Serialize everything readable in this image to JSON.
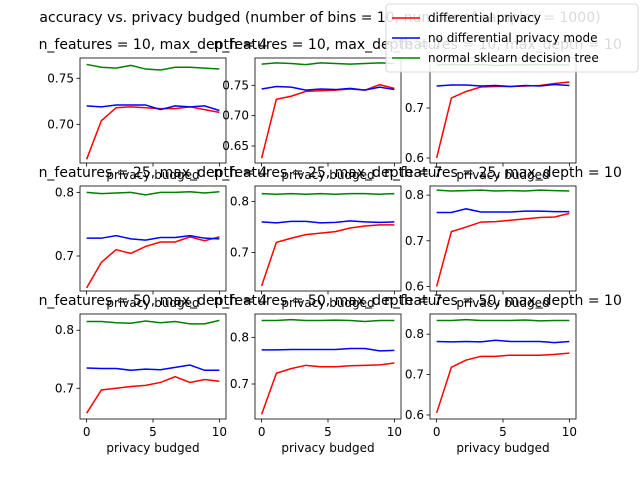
{
  "figure": {
    "suptitle": "accuracy vs. privacy budged (number of bins = 10, number of samples = 1000)"
  },
  "legend": {
    "entries": [
      {
        "name": "differential privacy",
        "color": "#ff0000"
      },
      {
        "name": "no differential privacy mode",
        "color": "#0000ff"
      },
      {
        "name": "normal sklearn decision tree",
        "color": "#008000"
      }
    ]
  },
  "chart_data": [
    {
      "type": "line",
      "title": "n_features = 10, max_depth = 4",
      "xlabel": "privacy budged",
      "ylabel": "",
      "xlim": [
        -0.5,
        10.5
      ],
      "ylim": [
        0.658,
        0.772
      ],
      "yticks": [
        {
          "v": 0.7,
          "label": "0.70"
        },
        {
          "v": 0.75,
          "label": "0.75"
        }
      ],
      "x": [
        0,
        1.11,
        2.22,
        3.33,
        4.44,
        5.56,
        6.67,
        7.78,
        8.89,
        10
      ],
      "series": [
        {
          "name": "differential privacy",
          "color": "#ff0000",
          "values": [
            0.662,
            0.704,
            0.718,
            0.719,
            0.718,
            0.717,
            0.717,
            0.719,
            0.716,
            0.713
          ]
        },
        {
          "name": "no differential privacy mode",
          "color": "#0000ff",
          "values": [
            0.72,
            0.719,
            0.721,
            0.721,
            0.721,
            0.716,
            0.72,
            0.719,
            0.72,
            0.715
          ]
        },
        {
          "name": "normal sklearn decision tree",
          "color": "#008000",
          "values": [
            0.765,
            0.762,
            0.761,
            0.764,
            0.76,
            0.759,
            0.762,
            0.762,
            0.761,
            0.76
          ]
        }
      ]
    },
    {
      "type": "line",
      "title": "n_features = 10, max_depth = 7",
      "xlabel": "privacy budged",
      "ylabel": "",
      "xlim": [
        -0.5,
        10.5
      ],
      "ylim": [
        0.622,
        0.795
      ],
      "yticks": [
        {
          "v": 0.65,
          "label": "0.65"
        },
        {
          "v": 0.7,
          "label": "0.70"
        },
        {
          "v": 0.75,
          "label": "0.75"
        }
      ],
      "x": [
        0,
        1.11,
        2.22,
        3.33,
        4.44,
        5.56,
        6.67,
        7.78,
        8.89,
        10
      ],
      "series": [
        {
          "name": "differential privacy",
          "color": "#ff0000",
          "values": [
            0.63,
            0.727,
            0.732,
            0.74,
            0.741,
            0.742,
            0.744,
            0.742,
            0.751,
            0.745
          ]
        },
        {
          "name": "no differential privacy mode",
          "color": "#0000ff",
          "values": [
            0.744,
            0.748,
            0.747,
            0.742,
            0.744,
            0.743,
            0.745,
            0.742,
            0.747,
            0.743
          ]
        },
        {
          "name": "normal sklearn decision tree",
          "color": "#008000",
          "values": [
            0.785,
            0.787,
            0.786,
            0.784,
            0.787,
            0.786,
            0.785,
            0.786,
            0.787,
            0.786
          ]
        }
      ]
    },
    {
      "type": "line",
      "title": "n_features = 10, max_depth = 10",
      "xlabel": "privacy budged",
      "ylabel": "",
      "xlim": [
        -0.5,
        10.5
      ],
      "ylim": [
        0.59,
        0.8
      ],
      "yticks": [
        {
          "v": 0.6,
          "label": "0.6"
        },
        {
          "v": 0.7,
          "label": "0.7"
        }
      ],
      "x": [
        0,
        1.11,
        2.22,
        3.33,
        4.44,
        5.56,
        6.67,
        7.78,
        8.89,
        10
      ],
      "series": [
        {
          "name": "differential privacy",
          "color": "#ff0000",
          "values": [
            0.6,
            0.72,
            0.733,
            0.742,
            0.743,
            0.743,
            0.744,
            0.745,
            0.749,
            0.752
          ]
        },
        {
          "name": "no differential privacy mode",
          "color": "#0000ff",
          "values": [
            0.744,
            0.746,
            0.746,
            0.744,
            0.745,
            0.743,
            0.745,
            0.744,
            0.747,
            0.745
          ]
        },
        {
          "name": "normal sklearn decision tree",
          "color": "#008000",
          "values": [
            0.786,
            0.787,
            0.786,
            0.787,
            0.785,
            0.786,
            0.786,
            0.787,
            0.786,
            0.786
          ]
        }
      ]
    },
    {
      "type": "line",
      "title": "n_features = 25, max_depth = 4",
      "xlabel": "privacy budged",
      "ylabel": "",
      "xlim": [
        -0.5,
        10.5
      ],
      "ylim": [
        0.645,
        0.81
      ],
      "yticks": [
        {
          "v": 0.7,
          "label": "0.7"
        },
        {
          "v": 0.8,
          "label": "0.8"
        }
      ],
      "x": [
        0,
        1.11,
        2.22,
        3.33,
        4.44,
        5.56,
        6.67,
        7.78,
        8.89,
        10
      ],
      "series": [
        {
          "name": "differential privacy",
          "color": "#ff0000",
          "values": [
            0.65,
            0.69,
            0.71,
            0.704,
            0.715,
            0.722,
            0.722,
            0.73,
            0.724,
            0.73
          ]
        },
        {
          "name": "no differential privacy mode",
          "color": "#0000ff",
          "values": [
            0.728,
            0.728,
            0.732,
            0.727,
            0.725,
            0.729,
            0.729,
            0.732,
            0.728,
            0.727
          ]
        },
        {
          "name": "normal sklearn decision tree",
          "color": "#008000",
          "values": [
            0.8,
            0.798,
            0.799,
            0.8,
            0.796,
            0.8,
            0.8,
            0.801,
            0.799,
            0.801
          ]
        }
      ]
    },
    {
      "type": "line",
      "title": "n_features = 25, max_depth = 7",
      "xlabel": "privacy budged",
      "ylabel": "",
      "xlim": [
        -0.5,
        10.5
      ],
      "ylim": [
        0.625,
        0.83
      ],
      "yticks": [
        {
          "v": 0.7,
          "label": "0.7"
        },
        {
          "v": 0.8,
          "label": "0.8"
        }
      ],
      "x": [
        0,
        1.11,
        2.22,
        3.33,
        4.44,
        5.56,
        6.67,
        7.78,
        8.89,
        10
      ],
      "series": [
        {
          "name": "differential privacy",
          "color": "#ff0000",
          "values": [
            0.635,
            0.72,
            0.728,
            0.735,
            0.738,
            0.741,
            0.748,
            0.752,
            0.754,
            0.754
          ]
        },
        {
          "name": "no differential privacy mode",
          "color": "#0000ff",
          "values": [
            0.76,
            0.758,
            0.761,
            0.761,
            0.758,
            0.759,
            0.762,
            0.76,
            0.759,
            0.76
          ]
        },
        {
          "name": "normal sklearn decision tree",
          "color": "#008000",
          "values": [
            0.815,
            0.814,
            0.815,
            0.814,
            0.815,
            0.814,
            0.815,
            0.815,
            0.814,
            0.815
          ]
        }
      ]
    },
    {
      "type": "line",
      "title": "n_features = 25, max_depth = 10",
      "xlabel": "privacy budged",
      "ylabel": "",
      "xlim": [
        -0.5,
        10.5
      ],
      "ylim": [
        0.59,
        0.82
      ],
      "yticks": [
        {
          "v": 0.6,
          "label": "0.6"
        },
        {
          "v": 0.7,
          "label": "0.7"
        },
        {
          "v": 0.8,
          "label": "0.8"
        }
      ],
      "x": [
        0,
        1.11,
        2.22,
        3.33,
        4.44,
        5.56,
        6.67,
        7.78,
        8.89,
        10
      ],
      "series": [
        {
          "name": "differential privacy",
          "color": "#ff0000",
          "values": [
            0.6,
            0.72,
            0.73,
            0.741,
            0.742,
            0.745,
            0.748,
            0.751,
            0.752,
            0.76
          ]
        },
        {
          "name": "no differential privacy mode",
          "color": "#0000ff",
          "values": [
            0.762,
            0.762,
            0.77,
            0.763,
            0.763,
            0.763,
            0.765,
            0.765,
            0.764,
            0.764
          ]
        },
        {
          "name": "normal sklearn decision tree",
          "color": "#008000",
          "values": [
            0.811,
            0.809,
            0.81,
            0.811,
            0.809,
            0.81,
            0.809,
            0.811,
            0.81,
            0.809
          ]
        }
      ]
    },
    {
      "type": "line",
      "title": "n_features = 50, max_depth = 4",
      "xlabel": "privacy budged",
      "ylabel": "",
      "xlim": [
        -0.5,
        10.5
      ],
      "ylim": [
        0.647,
        0.828
      ],
      "yticks": [
        {
          "v": 0.7,
          "label": "0.7"
        },
        {
          "v": 0.8,
          "label": "0.8"
        }
      ],
      "x": [
        0,
        1.11,
        2.22,
        3.33,
        4.44,
        5.56,
        6.67,
        7.78,
        8.89,
        10
      ],
      "series": [
        {
          "name": "differential privacy",
          "color": "#ff0000",
          "values": [
            0.657,
            0.697,
            0.7,
            0.703,
            0.705,
            0.71,
            0.72,
            0.71,
            0.715,
            0.712
          ]
        },
        {
          "name": "no differential privacy mode",
          "color": "#0000ff",
          "values": [
            0.735,
            0.734,
            0.734,
            0.731,
            0.733,
            0.732,
            0.736,
            0.74,
            0.731,
            0.731
          ]
        },
        {
          "name": "normal sklearn decision tree",
          "color": "#008000",
          "values": [
            0.815,
            0.815,
            0.813,
            0.812,
            0.816,
            0.813,
            0.815,
            0.811,
            0.811,
            0.817
          ]
        }
      ]
    },
    {
      "type": "line",
      "title": "n_features = 50, max_depth = 7",
      "xlabel": "privacy budged",
      "ylabel": "",
      "xlim": [
        -0.5,
        10.5
      ],
      "ylim": [
        0.625,
        0.85
      ],
      "yticks": [
        {
          "v": 0.7,
          "label": "0.7"
        },
        {
          "v": 0.8,
          "label": "0.8"
        }
      ],
      "x": [
        0,
        1.11,
        2.22,
        3.33,
        4.44,
        5.56,
        6.67,
        7.78,
        8.89,
        10
      ],
      "series": [
        {
          "name": "differential privacy",
          "color": "#ff0000",
          "values": [
            0.635,
            0.723,
            0.733,
            0.74,
            0.737,
            0.737,
            0.739,
            0.74,
            0.741,
            0.745
          ]
        },
        {
          "name": "no differential privacy mode",
          "color": "#0000ff",
          "values": [
            0.773,
            0.773,
            0.774,
            0.774,
            0.774,
            0.774,
            0.776,
            0.776,
            0.771,
            0.772
          ]
        },
        {
          "name": "normal sklearn decision tree",
          "color": "#008000",
          "values": [
            0.836,
            0.836,
            0.838,
            0.836,
            0.836,
            0.837,
            0.836,
            0.834,
            0.836,
            0.836
          ]
        }
      ]
    },
    {
      "type": "line",
      "title": "n_features = 50, max_depth = 10",
      "xlabel": "privacy budged",
      "ylabel": "",
      "xlim": [
        -0.5,
        10.5
      ],
      "ylim": [
        0.59,
        0.85
      ],
      "yticks": [
        {
          "v": 0.6,
          "label": "0.6"
        },
        {
          "v": 0.7,
          "label": "0.7"
        },
        {
          "v": 0.8,
          "label": "0.8"
        }
      ],
      "x": [
        0,
        1.11,
        2.22,
        3.33,
        4.44,
        5.56,
        6.67,
        7.78,
        8.89,
        10
      ],
      "series": [
        {
          "name": "differential privacy",
          "color": "#ff0000",
          "values": [
            0.605,
            0.718,
            0.736,
            0.745,
            0.745,
            0.748,
            0.748,
            0.748,
            0.75,
            0.753
          ]
        },
        {
          "name": "no differential privacy mode",
          "color": "#0000ff",
          "values": [
            0.782,
            0.781,
            0.782,
            0.781,
            0.785,
            0.782,
            0.782,
            0.782,
            0.779,
            0.782
          ]
        },
        {
          "name": "normal sklearn decision tree",
          "color": "#008000",
          "values": [
            0.834,
            0.834,
            0.836,
            0.834,
            0.834,
            0.834,
            0.835,
            0.833,
            0.834,
            0.834
          ]
        }
      ]
    }
  ]
}
